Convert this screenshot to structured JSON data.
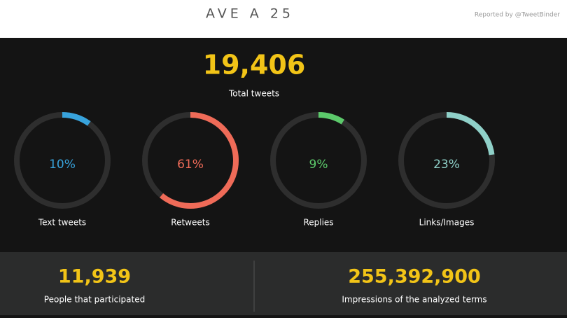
{
  "header": {
    "title": "AVE A 25",
    "credit": "Reported by @TweetBinder"
  },
  "total": {
    "value": "19,406",
    "label": "Total tweets"
  },
  "gauges": [
    {
      "name": "Text tweets",
      "value": 10,
      "value_label": "10%",
      "color": "#38a3dc"
    },
    {
      "name": "Retweets",
      "value": 61,
      "value_label": "61%",
      "color": "#ef6b58"
    },
    {
      "name": "Replies",
      "value": 9,
      "value_label": "9%",
      "color": "#5cc96b"
    },
    {
      "name": "Links/Images",
      "value": 23,
      "value_label": "23%",
      "color": "#8fd0c8"
    }
  ],
  "stats": [
    {
      "value": "11,939",
      "label": "People that participated"
    },
    {
      "value": "255,392,900",
      "label": "Impressions of the analyzed terms"
    }
  ]
}
